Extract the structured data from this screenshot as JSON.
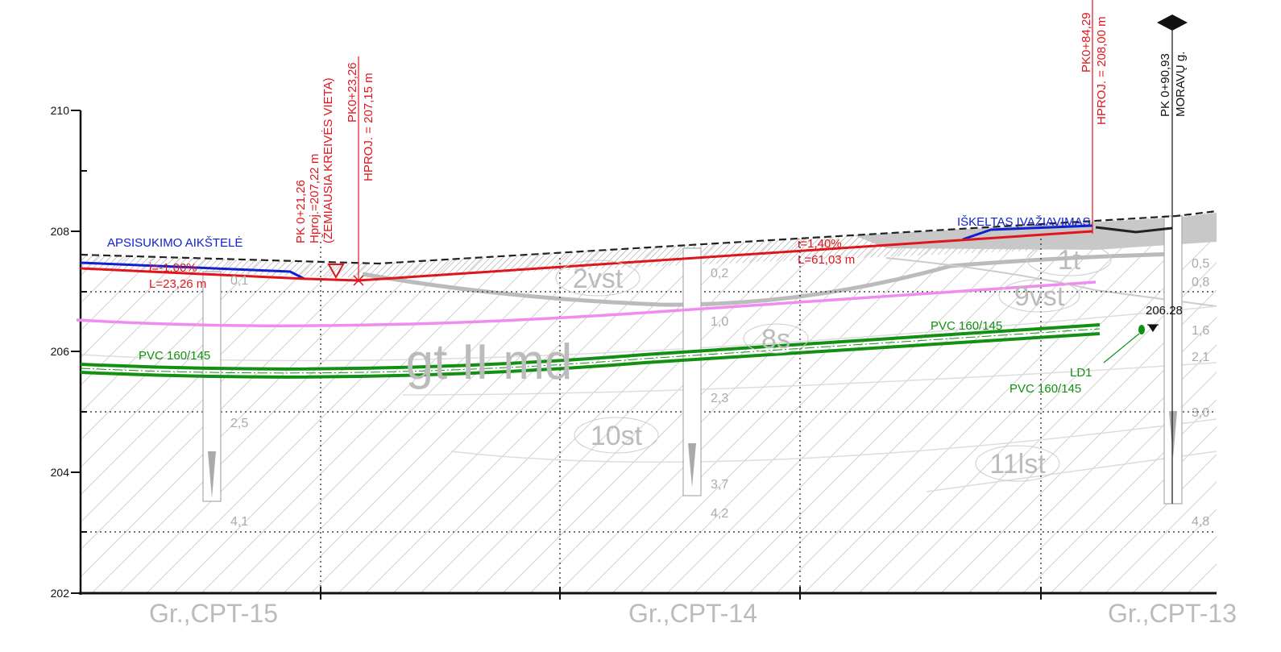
{
  "axis": {
    "labels": [
      "210",
      "208",
      "206",
      "204",
      "202"
    ]
  },
  "boreholes": [
    {
      "name": "Gr.,CPT-15",
      "depths": [
        "0,1",
        "2,5",
        "4,1"
      ]
    },
    {
      "name": "Gr.,CPT-14",
      "depths": [
        "0,2",
        "1,0",
        "2,3",
        "3,7",
        "4,2"
      ]
    },
    {
      "name": "Gr.,CPT-13",
      "depths": [
        "0,5",
        "0,8",
        "1,6",
        "2,1",
        "3,0",
        "4,8"
      ]
    }
  ],
  "soil_layers": [
    "2vst",
    "1t",
    "9vst",
    "8s",
    "gt II md",
    "10st",
    "11lst"
  ],
  "annotations": {
    "turning_area": "APSISUKIMO AIKŠTELĖ",
    "raised_entry": "IŠKELTAS ĮVAŽIAVIMAS",
    "slope_left": "i=-1,00%",
    "length_left": "L=23,26 m",
    "slope_right": "i=1,40%",
    "length_right": "L=61,03 m",
    "pipe_left": "PVC 160/145",
    "pipe_right": "PVC 160/145",
    "ld_name": "LD1",
    "ld_pipe": "PVC 160/145",
    "ld_level": "206.28"
  },
  "stations": [
    {
      "lines": [
        "PK 0+21,26",
        "Hproj.=207,22 m",
        "(ŽEMIAUSIA KREIVĖS VIETA)"
      ]
    },
    {
      "lines": [
        "PK0+23,26",
        "HPROJ. = 207,15 m"
      ]
    },
    {
      "lines": [
        "PK0+84,29",
        "HPROJ. = 208,00 m"
      ]
    },
    {
      "lines": [
        "PK 0+90,93",
        "MORAVŲ g."
      ]
    }
  ]
}
